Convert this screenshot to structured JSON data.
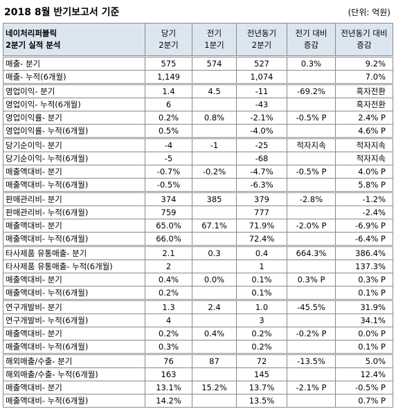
{
  "header": {
    "title": "2018 8월 반기보고서 기준",
    "unit": "(단위: 억원)"
  },
  "table": {
    "columns": [
      [
        "네이처리퍼블릭",
        "2분기 실적 분석"
      ],
      [
        "당기",
        "2분기"
      ],
      [
        "전기",
        "1분기"
      ],
      [
        "전년동기",
        "2분기"
      ],
      [
        "전기 대비",
        "증감"
      ],
      [
        "전년동기 대비",
        "증감"
      ]
    ],
    "groups": [
      {
        "rows": [
          [
            "매출- 분기",
            "575",
            "574",
            "527",
            "0.3%",
            "9.2%"
          ],
          [
            "매출- 누적(6개월)",
            "1,149",
            null,
            "1,074",
            null,
            "7.0%"
          ]
        ]
      },
      {
        "rows": [
          [
            "영업이익- 분기",
            "1.4",
            "4.5",
            "-11",
            "-69.2%",
            "흑자전환"
          ],
          [
            "영업이익- 누적(6개월)",
            "6",
            null,
            "-43",
            null,
            "흑자전환"
          ],
          [
            "영업이익률- 분기",
            "0.2%",
            "0.8%",
            "-2.1%",
            "-0.5% P",
            "2.4% P"
          ],
          [
            "영업이익률- 누적(6개월)",
            "0.5%",
            null,
            "-4.0%",
            null,
            "4.6% P"
          ]
        ]
      },
      {
        "rows": [
          [
            "당기순이익- 분기",
            "-4",
            "-1",
            "-25",
            "적자지속",
            "적자지속"
          ],
          [
            "당기순이익- 누적(6개월)",
            "-5",
            null,
            "-68",
            null,
            "적자지속"
          ],
          [
            "매출액대비- 분기",
            "-0.7%",
            "-0.2%",
            "-4.7%",
            "-0.5% P",
            "4.0% P"
          ],
          [
            "매출액대비- 누적(6개월)",
            "-0.5%",
            null,
            "-6.3%",
            null,
            "5.8% P"
          ]
        ]
      },
      {
        "rows": [
          [
            "판매관리비- 분기",
            "374",
            "385",
            "379",
            "-2.8%",
            "-1.2%"
          ],
          [
            "판매관리비- 누적(6개월)",
            "759",
            null,
            "777",
            null,
            "-2.4%"
          ],
          [
            "매출액대비- 분기",
            "65.0%",
            "67.1%",
            "71.9%",
            "-2.0% P",
            "-6.9% P"
          ],
          [
            "매출액대비- 누적(6개월)",
            "66.0%",
            null,
            "72.4%",
            null,
            "-6.4% P"
          ]
        ]
      },
      {
        "rows": [
          [
            "타사제품 유통매출- 분기",
            "2.1",
            "0.3",
            "0.4",
            "664.3%",
            "386.4%"
          ],
          [
            "타사제품 유통매출- 누적(6개월)",
            "2",
            null,
            "1",
            null,
            "137.3%"
          ],
          [
            "매출액대비- 분기",
            "0.4%",
            "0.0%",
            "0.1%",
            "0.3% P",
            "0.3% P"
          ],
          [
            "매출액대비- 누적(6개월)",
            "0.2%",
            null,
            "0.1%",
            null,
            "0.1% P"
          ]
        ]
      },
      {
        "rows": [
          [
            "연구개발비- 분기",
            "1.3",
            "2.4",
            "1.0",
            "-45.5%",
            "31.9%"
          ],
          [
            "연구개발비- 누적(6개월)",
            "4",
            null,
            "3",
            null,
            "34.1%"
          ],
          [
            "매출액대비- 분기",
            "0.2%",
            "0.4%",
            "0.2%",
            "-0.2% P",
            "0.0% P"
          ],
          [
            "매출액대비- 누적(6개월)",
            "0.3%",
            null,
            "0.2%",
            null,
            "0.1% P"
          ]
        ]
      },
      {
        "rows": [
          [
            "해외매출/수출- 분기",
            "76",
            "87",
            "72",
            "-13.5%",
            "5.0%"
          ],
          [
            "해외매출/수출- 누적(6개월)",
            "163",
            null,
            "145",
            null,
            "12.4%"
          ],
          [
            "매출액대비- 분기",
            "13.1%",
            "15.2%",
            "13.7%",
            "-2.1% P",
            "-0.5% P"
          ],
          [
            "매출액대비- 누적(6개월)",
            "14.2%",
            null,
            "13.5%",
            null,
            "0.7% P"
          ]
        ]
      }
    ]
  }
}
